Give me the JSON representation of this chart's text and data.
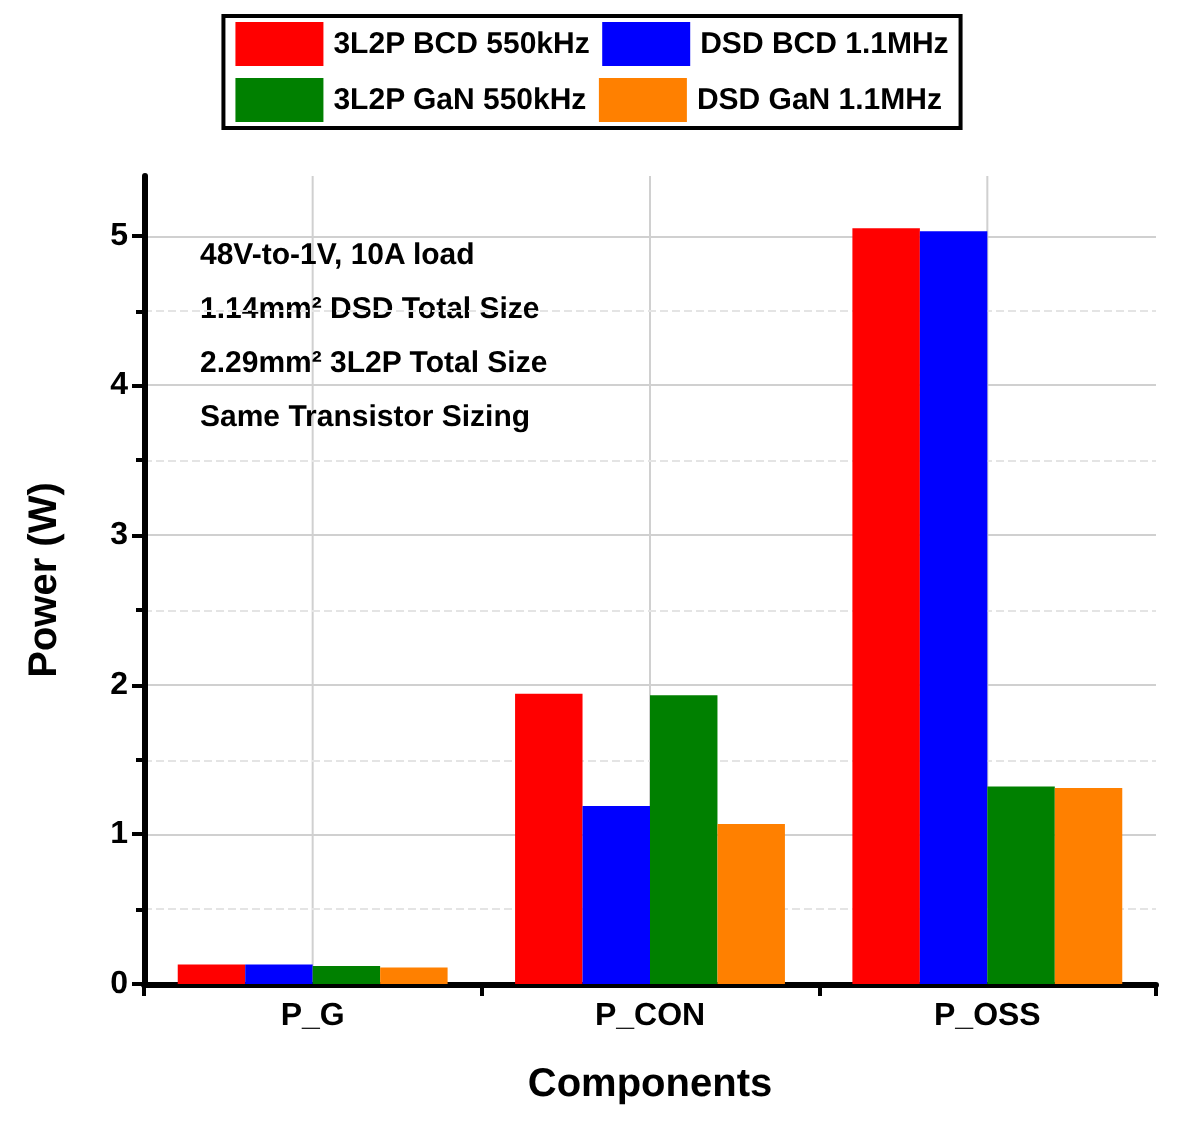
{
  "chart_data": {
    "type": "bar",
    "xlabel": "Components",
    "ylabel": "Power (W)",
    "categories": [
      "P_G",
      "P_CON",
      "P_OSS"
    ],
    "series": [
      {
        "name": "3L2P BCD 550kHz",
        "color": "#ff0000",
        "values": [
          0.13,
          1.94,
          5.05
        ]
      },
      {
        "name": "DSD BCD 1.1MHz",
        "color": "#0000ff",
        "values": [
          0.13,
          1.19,
          5.03
        ]
      },
      {
        "name": "3L2P GaN 550kHz",
        "color": "#008000",
        "values": [
          0.12,
          1.93,
          1.32
        ]
      },
      {
        "name": "DSD GaN 1.1MHz",
        "color": "#ff8000",
        "values": [
          0.11,
          1.07,
          1.31
        ]
      }
    ],
    "ylim": [
      0,
      5.4
    ],
    "yticks": [
      0,
      1,
      2,
      3,
      4,
      5
    ],
    "grid": true,
    "legend": "top",
    "annotations": [
      "48V-to-1V, 10A load",
      "1.14mm² DSD Total Size",
      "2.29mm² 3L2P Total Size",
      "Same Transistor Sizing"
    ]
  }
}
